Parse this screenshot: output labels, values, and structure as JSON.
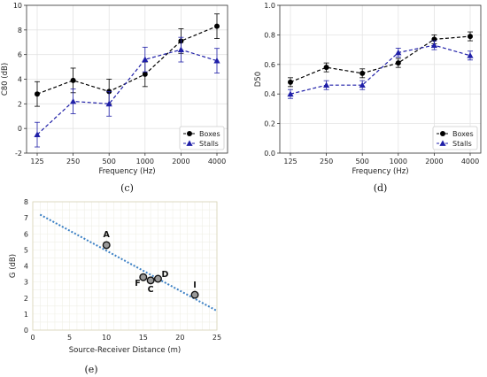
{
  "chart_data": [
    {
      "type": "line",
      "caption": "(c)",
      "ylabel": "C80 (dB)",
      "xlabel": "Frequency (Hz)",
      "categories": [
        "125",
        "250",
        "500",
        "1000",
        "2000",
        "4000"
      ],
      "ylim": [
        -2,
        10
      ],
      "yticks": [
        -2,
        0,
        2,
        4,
        6,
        8,
        10
      ],
      "grid": true,
      "legend": "bottom-right",
      "series": [
        {
          "name": "Boxes",
          "values": [
            2.8,
            3.9,
            3.0,
            4.4,
            7.1,
            8.3
          ],
          "errors": [
            1.0,
            1.0,
            1.0,
            1.0,
            1.0,
            1.0
          ],
          "color": "#000000",
          "marker": "circle"
        },
        {
          "name": "Stalls",
          "values": [
            -0.5,
            2.2,
            2.0,
            5.6,
            6.4,
            5.5
          ],
          "errors": [
            1.0,
            1.0,
            1.0,
            1.0,
            1.0,
            1.0
          ],
          "color": "#1f1fa8",
          "marker": "triangle"
        }
      ]
    },
    {
      "type": "line",
      "caption": "(d)",
      "ylabel": "D50",
      "xlabel": "Frequency (Hz)",
      "categories": [
        "125",
        "250",
        "500",
        "1000",
        "2000",
        "4000"
      ],
      "ylim": [
        0,
        1.0
      ],
      "yticks": [
        "0.0",
        "0.2",
        "0.4",
        "0.6",
        "0.8",
        "1.0"
      ],
      "grid": true,
      "legend": "bottom-right",
      "series": [
        {
          "name": "Boxes",
          "values": [
            0.48,
            0.58,
            0.54,
            0.61,
            0.77,
            0.79
          ],
          "errors": [
            0.03,
            0.03,
            0.03,
            0.03,
            0.03,
            0.03
          ],
          "color": "#000000",
          "marker": "circle"
        },
        {
          "name": "Stalls",
          "values": [
            0.4,
            0.46,
            0.46,
            0.68,
            0.73,
            0.66
          ],
          "errors": [
            0.03,
            0.03,
            0.03,
            0.03,
            0.03,
            0.03
          ],
          "color": "#1f1fa8",
          "marker": "triangle"
        }
      ]
    },
    {
      "type": "scatter",
      "caption": "(e)",
      "ylabel": "G (dB)",
      "xlabel": "Source-Receiver Distance (m)",
      "xlim": [
        0,
        25
      ],
      "xticks": [
        0,
        5,
        10,
        15,
        20,
        25
      ],
      "ylim": [
        0,
        8
      ],
      "yticks": [
        0,
        1,
        2,
        3,
        4,
        5,
        6,
        7,
        8
      ],
      "grid": true,
      "points": [
        {
          "label": "A",
          "x": 10.0,
          "y": 5.3
        },
        {
          "label": "F",
          "x": 15.0,
          "y": 3.3
        },
        {
          "label": "C",
          "x": 16.0,
          "y": 3.1
        },
        {
          "label": "D",
          "x": 17.0,
          "y": 3.2
        },
        {
          "label": "I",
          "x": 22.0,
          "y": 2.2
        }
      ],
      "fit_line": {
        "x": [
          1,
          25
        ],
        "y": [
          7.2,
          1.2
        ]
      },
      "point_color": "#9a9a9a",
      "line_color": "#3a7fc4"
    }
  ]
}
